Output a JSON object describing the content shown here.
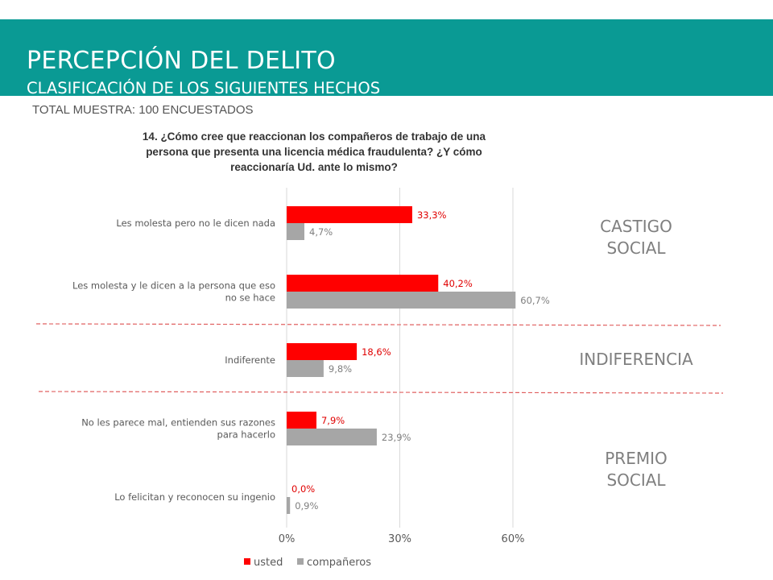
{
  "header": {
    "title": "PERCEPCIÓN DEL DELITO",
    "subtitle": "CLASIFICACIÓN DE LOS SIGUIENTES HECHOS"
  },
  "sample_note": "TOTAL MUESTRA: 100 ENCUESTADOS",
  "question_lines": [
    "14. ¿Cómo cree que  reaccionan los compañeros de trabajo de una",
    "persona que presenta una licencia médica fraudulenta? ¿Y cómo",
    "reaccionaría Ud. ante lo mismo?"
  ],
  "groups": {
    "castigo_line1": "CASTIGO",
    "castigo_line2": "SOCIAL",
    "indiferencia": "INDIFERENCIA",
    "premio_line1": "PREMIO",
    "premio_line2": "SOCIAL"
  },
  "colors": {
    "banner": "#0a9a94",
    "usted": "#ff0000",
    "companeros": "#a6a6a6",
    "separator": "#e06060"
  },
  "chart_data": {
    "type": "bar",
    "orientation": "horizontal",
    "categories": [
      [
        "Les molesta pero no le dicen nada"
      ],
      [
        "Les molesta y le dicen a la persona que eso",
        "no se hace"
      ],
      [
        "Indiferente"
      ],
      [
        "No les parece mal, entienden sus razones",
        "para hacerlo"
      ],
      [
        "Lo felicitan y reconocen su ingenio"
      ]
    ],
    "series": [
      {
        "name": "usted",
        "values": [
          33.3,
          40.2,
          18.6,
          7.9,
          0.0
        ],
        "labels": [
          "33,3%",
          "40,2%",
          "18,6%",
          "7,9%",
          "0,0%"
        ]
      },
      {
        "name": "compañeros",
        "values": [
          4.7,
          60.7,
          9.8,
          23.9,
          0.9
        ],
        "labels": [
          "4,7%",
          "60,7%",
          "9,8%",
          "23,9%",
          "0,9%"
        ]
      }
    ],
    "xlim": [
      0,
      60
    ],
    "ticks": [
      0,
      30,
      60
    ],
    "tick_labels": [
      "0%",
      "30%",
      "60%"
    ],
    "grid": true,
    "legend_position": "bottom"
  }
}
